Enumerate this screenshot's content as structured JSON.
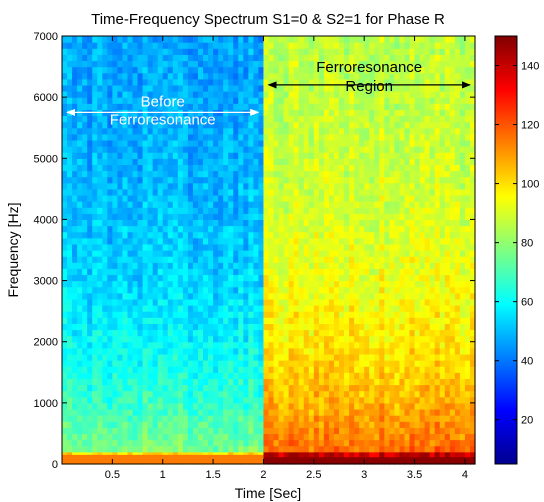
{
  "chart_data": {
    "type": "heatmap",
    "title": "Time-Frequency Spectrum S1=0 & S2=1 for Phase R",
    "xlabel": "Time [Sec]",
    "ylabel": "Frequency [Hz]",
    "xlim": [
      0,
      4.1
    ],
    "ylim": [
      0,
      7000
    ],
    "x_ticks": [
      "0.5",
      "1",
      "1.5",
      "2",
      "2.5",
      "3",
      "3.5",
      "4"
    ],
    "y_ticks": [
      "0",
      "1000",
      "2000",
      "3000",
      "4000",
      "5000",
      "6000",
      "7000"
    ],
    "colorbar": {
      "range": [
        5,
        150
      ],
      "ticks": [
        "20",
        "40",
        "60",
        "80",
        "100",
        "120",
        "140"
      ],
      "colormap": "jet"
    },
    "regions": [
      {
        "x_start": 0,
        "x_end": 2.0,
        "level_low_freq": 80,
        "level_high_freq": 45
      },
      {
        "x_start": 2.0,
        "x_end": 4.1,
        "level_low_freq": 120,
        "level_high_freq": 85
      }
    ],
    "annotations": [
      {
        "lines": [
          "Before",
          "Ferroresonance"
        ],
        "x_from": 0.05,
        "x_to": 1.95,
        "y": 5750
      },
      {
        "lines": [
          "Ferroresonance",
          "Region"
        ],
        "x_from": 2.05,
        "x_to": 4.05,
        "y": 6200
      }
    ]
  }
}
